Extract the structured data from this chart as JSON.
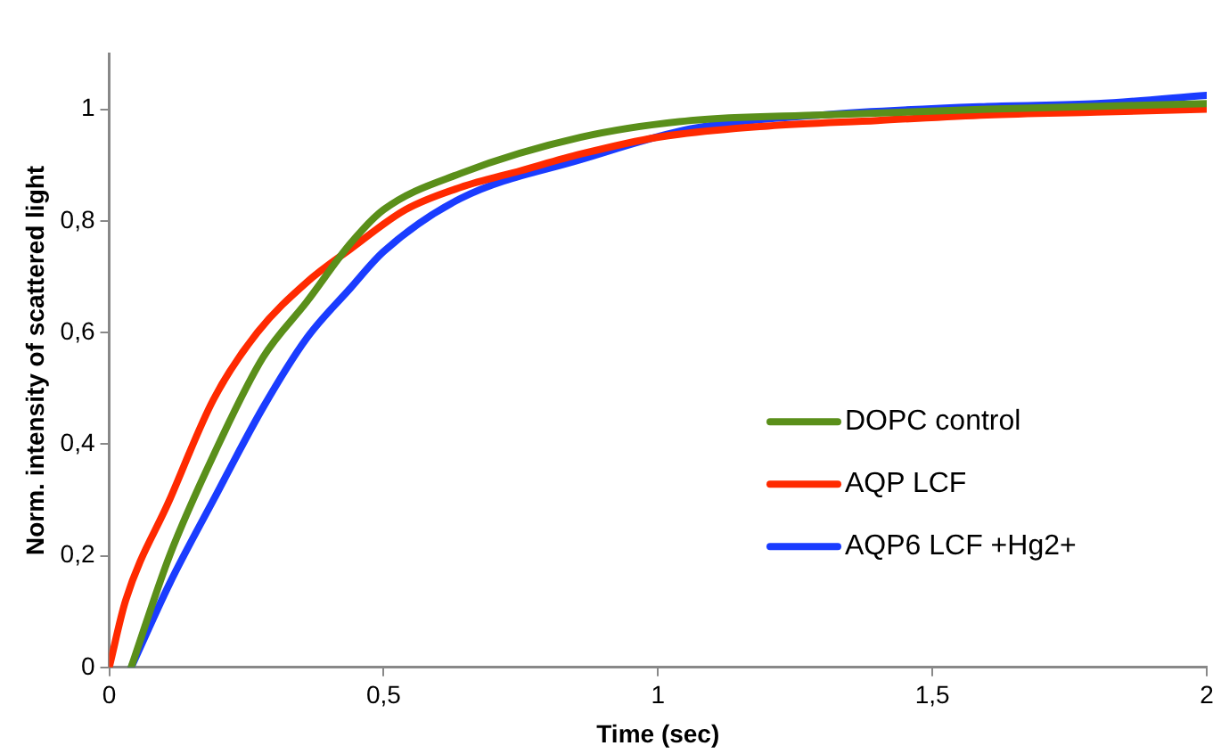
{
  "chart_data": {
    "type": "line",
    "xlabel": "Time (sec)",
    "ylabel": "Norm. intensity of scattered light",
    "xlim": [
      0,
      2
    ],
    "xticks": [
      0,
      {
        "value": 0.5,
        "label": "0,5"
      },
      1,
      {
        "value": 1.5,
        "label": "1,5"
      },
      2
    ],
    "ylim": [
      0,
      1.1
    ],
    "yticks": [
      0,
      {
        "value": 0.2,
        "label": "0,2"
      },
      {
        "value": 0.4,
        "label": "0,4"
      },
      {
        "value": 0.6,
        "label": "0,6"
      },
      {
        "value": 0.8,
        "label": "0,8"
      },
      1
    ],
    "grid": false,
    "legend": "right",
    "marker": "none",
    "line_style": "solid",
    "series": [
      {
        "name": "DOPC control",
        "color": "#5a8f1a",
        "x": [
          0.04,
          0.11,
          0.19,
          0.28,
          0.36,
          0.44,
          0.5,
          0.64,
          0.86,
          1.06,
          1.3,
          1.6,
          2.0
        ],
        "values": [
          0,
          0.2,
          0.38,
          0.555,
          0.655,
          0.76,
          0.82,
          0.885,
          0.95,
          0.98,
          0.99,
          1.0,
          1.01
        ]
      },
      {
        "name": "AQP LCF",
        "color": "#ff2a00",
        "x": [
          0,
          0.03,
          0.11,
          0.19,
          0.27,
          0.36,
          0.44,
          0.54,
          0.64,
          0.75,
          0.86,
          1.0,
          1.2,
          1.4,
          1.6,
          1.8,
          2.0
        ],
        "values": [
          0,
          0.12,
          0.3,
          0.48,
          0.6,
          0.69,
          0.75,
          0.82,
          0.86,
          0.89,
          0.92,
          0.95,
          0.97,
          0.98,
          0.99,
          0.995,
          1.0
        ]
      },
      {
        "name": "AQP6 LCF +Hg2+",
        "color": "#1a3cff",
        "x": [
          0.04,
          0.11,
          0.19,
          0.28,
          0.36,
          0.44,
          0.5,
          0.64,
          0.86,
          1.06,
          1.3,
          1.6,
          1.8,
          2.0
        ],
        "values": [
          0,
          0.15,
          0.3,
          0.465,
          0.59,
          0.68,
          0.745,
          0.84,
          0.91,
          0.965,
          0.99,
          1.005,
          1.01,
          1.025
        ]
      }
    ]
  }
}
